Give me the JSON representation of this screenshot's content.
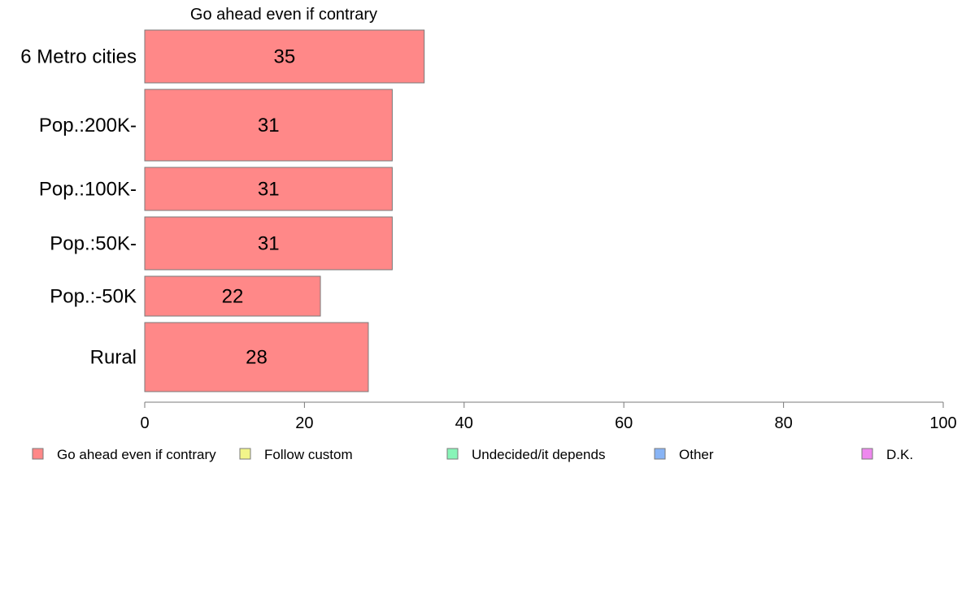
{
  "chart_data": {
    "type": "bar",
    "orientation": "horizontal",
    "title": "Go ahead even if contrary",
    "categories": [
      "6 Metro cities",
      "Pop.:200K-",
      "Pop.:100K-",
      "Pop.:50K-",
      "Pop.:-50K",
      "Rural"
    ],
    "series": [
      {
        "name": "Go ahead even if contrary",
        "values": [
          35,
          31,
          31,
          31,
          22,
          28
        ],
        "color": "#ff8888"
      }
    ],
    "data_labels": [
      "35",
      "31",
      "31",
      "31",
      "22",
      "28"
    ],
    "xlim": [
      0,
      100
    ],
    "xticks": [
      0,
      20,
      40,
      60,
      80,
      100
    ],
    "grid": false,
    "legend_position": "bottom",
    "legend": [
      {
        "label": "Go ahead even if contrary",
        "color": "#ff8888"
      },
      {
        "label": "Follow custom",
        "color": "#f2f58a"
      },
      {
        "label": "Undecided/it depends",
        "color": "#88f5b8"
      },
      {
        "label": "Other",
        "color": "#88b4f5"
      },
      {
        "label": "D.K.",
        "color": "#ee88ee"
      }
    ]
  }
}
